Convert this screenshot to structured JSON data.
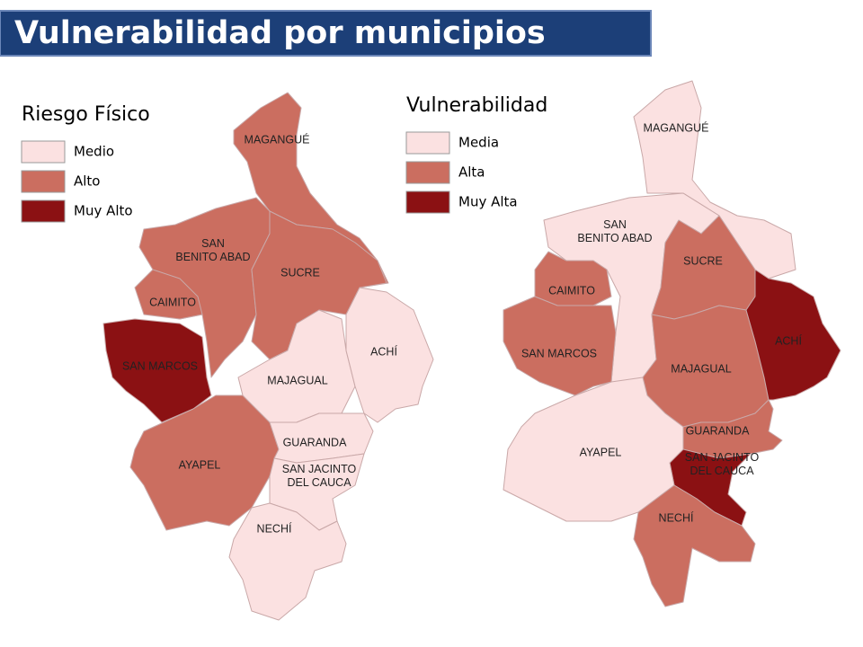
{
  "header": {
    "title": "Vulnerabilidad por municipios"
  },
  "maps": [
    {
      "legend": {
        "title": "Riesgo Físico",
        "items": [
          {
            "label": "Medio",
            "color": "#fbe1e1"
          },
          {
            "label": "Alto",
            "color": "#cb6e60"
          },
          {
            "label": "Muy Alto",
            "color": "#8b1113"
          }
        ]
      },
      "regions": [
        {
          "label_lines": [
            "MAGANGUÉ"
          ],
          "color": "#cb6e60"
        },
        {
          "label_lines": [
            "SAN",
            "BENITO ABAD"
          ],
          "color": "#cb6e60"
        },
        {
          "label_lines": [
            "SUCRE"
          ],
          "color": "#cb6e60"
        },
        {
          "label_lines": [
            "CAIMITO"
          ],
          "color": "#cb6e60"
        },
        {
          "label_lines": [
            "SAN MARCOS"
          ],
          "color": "#8b1113"
        },
        {
          "label_lines": [
            "AYAPEL"
          ],
          "color": "#cb6e60"
        },
        {
          "label_lines": [
            "MAJAGUAL"
          ],
          "color": "#fbe1e1"
        },
        {
          "label_lines": [
            "ACHÍ"
          ],
          "color": "#fbe1e1"
        },
        {
          "label_lines": [
            "GUARANDA"
          ],
          "color": "#fbe1e1"
        },
        {
          "label_lines": [
            "SAN JACINTO",
            "DEL CAUCA"
          ],
          "color": "#fbe1e1"
        },
        {
          "label_lines": [
            "NECHÍ"
          ],
          "color": "#fbe1e1"
        }
      ]
    },
    {
      "legend": {
        "title": "Vulnerabilidad",
        "items": [
          {
            "label": "Media",
            "color": "#fbe1e1"
          },
          {
            "label": "Alta",
            "color": "#cb6e60"
          },
          {
            "label": "Muy Alta",
            "color": "#8b1113"
          }
        ]
      },
      "regions": [
        {
          "label_lines": [
            "MAGANGUÉ"
          ],
          "color": "#fbe1e1"
        },
        {
          "label_lines": [
            "SAN",
            "BENITO ABAD"
          ],
          "color": "#fbe1e1"
        },
        {
          "label_lines": [
            "SUCRE"
          ],
          "color": "#cb6e60"
        },
        {
          "label_lines": [
            "CAIMITO"
          ],
          "color": "#cb6e60"
        },
        {
          "label_lines": [
            "SAN MARCOS"
          ],
          "color": "#cb6e60"
        },
        {
          "label_lines": [
            "MAJAGUAL"
          ],
          "color": "#cb6e60"
        },
        {
          "label_lines": [
            "ACHÍ"
          ],
          "color": "#8b1113"
        },
        {
          "label_lines": [
            "GUARANDA"
          ],
          "color": "#cb6e60"
        },
        {
          "label_lines": [
            "SAN JACINTO",
            "DEL CAUCA"
          ],
          "color": "#8b1113"
        },
        {
          "label_lines": [
            "AYAPEL"
          ],
          "color": "#fbe1e1"
        },
        {
          "label_lines": [
            "NECHÍ"
          ],
          "color": "#cb6e60"
        }
      ]
    }
  ]
}
